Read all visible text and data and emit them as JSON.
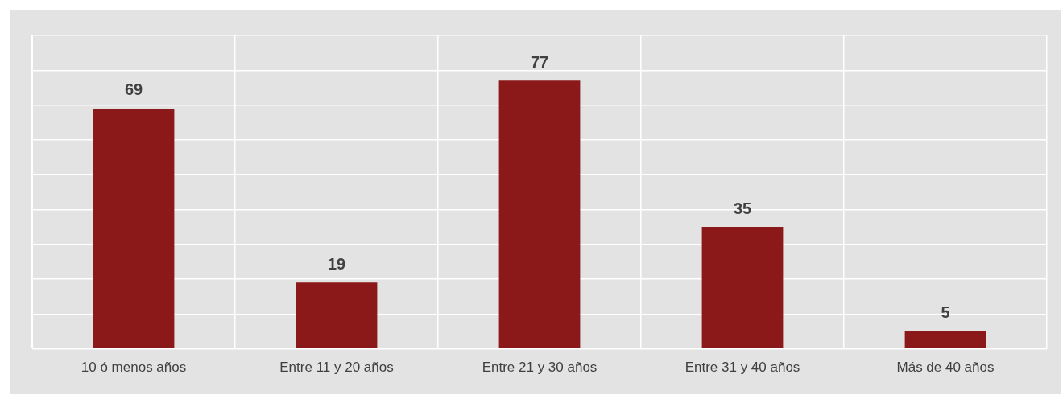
{
  "chart_data": {
    "type": "bar",
    "categories": [
      "10 ó menos años",
      "Entre 11 y 20 años",
      "Entre 21 y 30 años",
      "Entre 31 y 40 años",
      "Más de 40 años"
    ],
    "values": [
      69,
      19,
      77,
      35,
      5
    ],
    "color": "#8b1919",
    "ylim": [
      0,
      90
    ],
    "yticks": [
      {
        "value": 0,
        "label": null
      },
      {
        "value": 10,
        "label": null
      },
      {
        "value": 20,
        "label": null
      },
      {
        "value": 30,
        "label": null
      },
      {
        "value": 40,
        "label": null
      },
      {
        "value": 50,
        "label": null
      },
      {
        "value": 60,
        "label": null
      },
      {
        "value": 70,
        "label": null
      },
      {
        "value": 80,
        "label": null
      },
      {
        "value": 90,
        "label": null
      }
    ],
    "grid": true,
    "tick_labels": "x",
    "data_labels": true
  }
}
